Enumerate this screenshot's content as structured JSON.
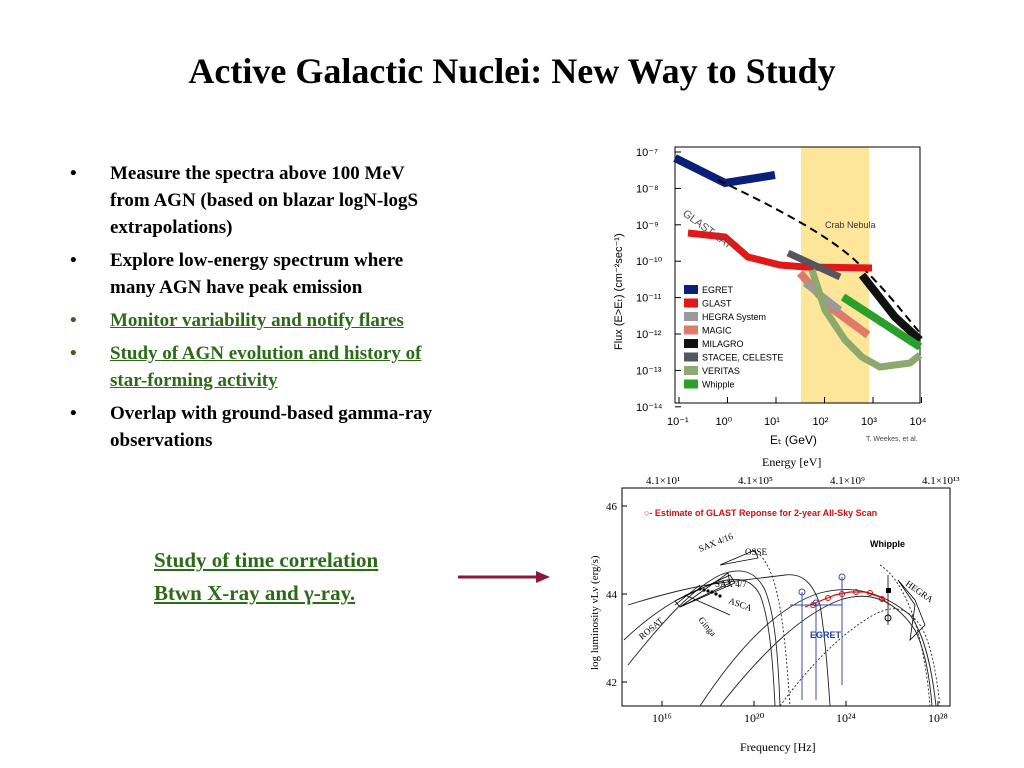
{
  "slide": {
    "title": "Active Galactic Nuclei: New Way to Study",
    "bullets": [
      {
        "lines": [
          "Measure  the spectra above 100 MeV",
          "from AGN (based on blazar logN-logS",
          "extrapolations)"
        ],
        "color": "#000000",
        "underline": false
      },
      {
        "lines": [
          "Explore low-energy spectrum where",
          "many AGN have peak emission"
        ],
        "color": "#000000",
        "underline": false
      },
      {
        "lines": [
          "Monitor variability and notify flares"
        ],
        "color": "#2b6a17",
        "underline": true
      },
      {
        "lines": [
          "Study of AGN evolution and history of",
          "star-forming activity"
        ],
        "color": "#2b6a17",
        "underline": true
      },
      {
        "lines": [
          "Overlap with ground-based gamma-ray",
          "observations"
        ],
        "color": "#000000",
        "underline": false
      }
    ],
    "bullet_char": "•",
    "correlation": {
      "line1": "Study of time correlation",
      "line2": "Btwn X-ray and γ-ray."
    },
    "arrow_color": "#8b1a3a"
  },
  "flux_chart": {
    "ylabel": "Flux (E>Eₜ) (cm⁻²sec⁻¹)",
    "xlabel": "Eₜ  (GeV)",
    "yticks": [
      "10⁻⁷",
      "10⁻⁸",
      "10⁻⁹",
      "10⁻¹⁰",
      "10⁻¹¹",
      "10⁻¹²",
      "10⁻¹³",
      "10⁻¹⁴"
    ],
    "xticks": [
      "10⁻¹",
      "10⁰",
      "10¹",
      "10²",
      "10³",
      "10⁴"
    ],
    "crab_label": "Crab Nebula",
    "glast_label": "GLAST LAT",
    "credit": "T. Weekes, et al.",
    "legend": [
      {
        "name": "EGRET",
        "color": "#0a1f7a"
      },
      {
        "name": "GLAST",
        "color": "#e01818"
      },
      {
        "name": "HEGRA System",
        "color": "#9a9a9a"
      },
      {
        "name": "MAGIC",
        "color": "#e07a6a"
      },
      {
        "name": "MILAGRO",
        "color": "#111111"
      },
      {
        "name": "STACEE, CELESTE",
        "color": "#555560"
      },
      {
        "name": "VERITAS",
        "color": "#8caa70"
      },
      {
        "name": "Whipple",
        "color": "#2aa02a"
      }
    ],
    "band_color": "#fde59a"
  },
  "sed_chart": {
    "top_axis_label": "Energy [eV]",
    "top_ticks": [
      "4.1×10¹",
      "4.1×10⁵",
      "4.1×10⁹",
      "4.1×10¹³"
    ],
    "xlabel": "Frequency [Hz]",
    "xticks": [
      "10¹⁶",
      "10²⁰",
      "10²⁴",
      "10²⁸"
    ],
    "ylabel": "log  luminosity νLν  (erg/s)",
    "yticks": [
      "46",
      "44",
      "42"
    ],
    "legend_text": "○- Estimate of GLAST Reponse for 2-year All-Sky Scan",
    "annotations": [
      "SAX 4/16",
      "OSSE",
      "SAX 4/7",
      "ASCA",
      "ROSAT",
      "Ginga",
      "Whipple",
      "HEGRA",
      "EGRET"
    ]
  }
}
